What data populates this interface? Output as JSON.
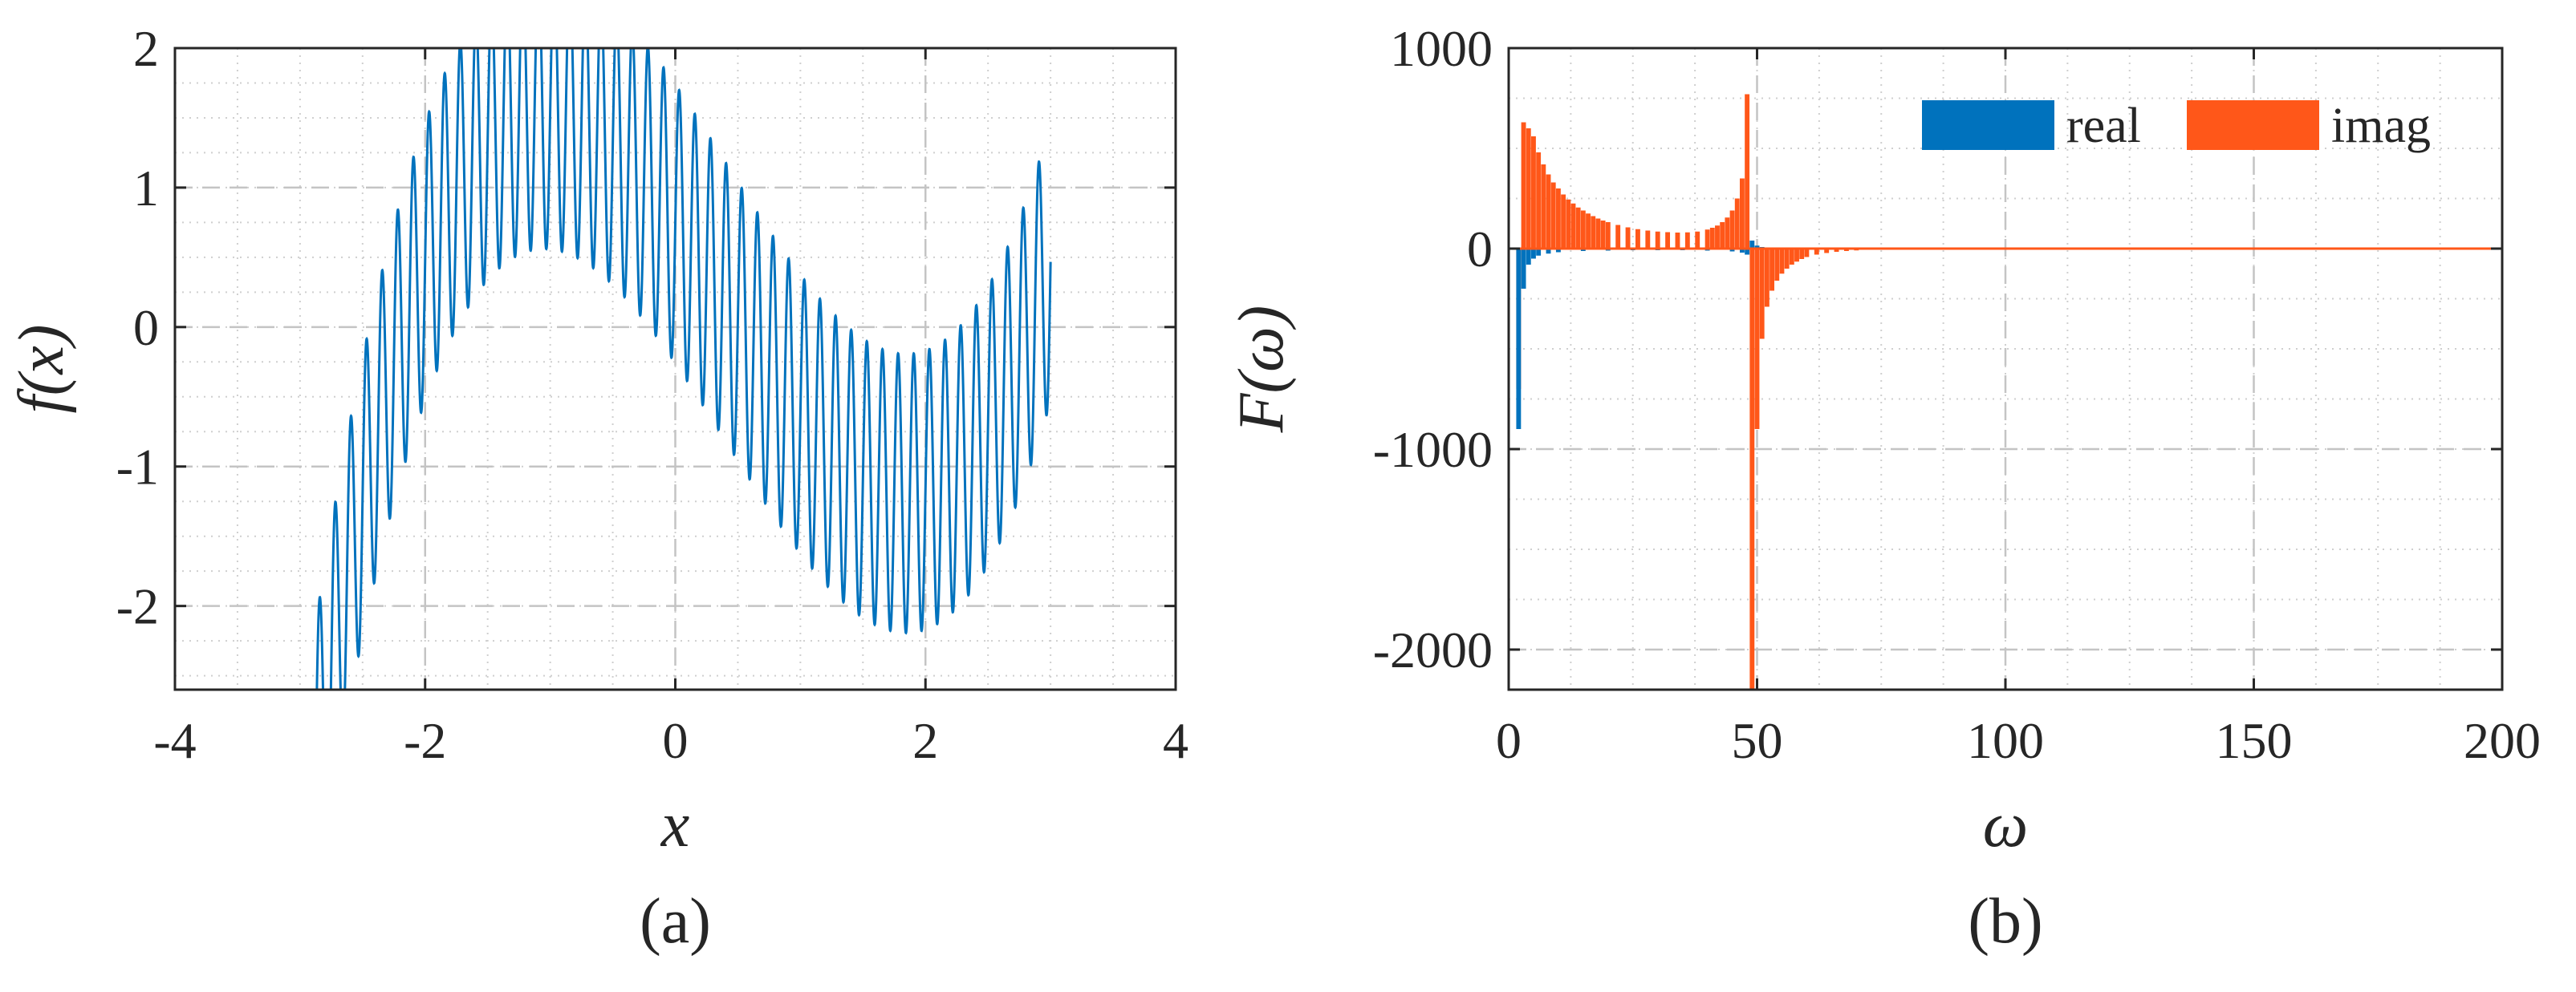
{
  "chart_data": [
    {
      "type": "line",
      "caption": "(a)",
      "xlabel": "x",
      "ylabel": "f(x)",
      "xlim": [
        -4,
        4
      ],
      "ylim": [
        -2.6,
        2
      ],
      "xticks": [
        "-4",
        "-2",
        "0",
        "2",
        "4"
      ],
      "yticks": [
        "2",
        "1",
        "0",
        "-1",
        "-2"
      ],
      "grid": true,
      "minor_grid": true,
      "series": [
        {
          "color": "#0072BD",
          "function": "0.5*(x+2.2)*(x-0.6)*(x-2.8)/2.2 - 0.1 + 1.0*sin(2*pi*8*x)",
          "x_range": [
            -3,
            3
          ],
          "samples": 6000
        }
      ]
    },
    {
      "type": "bar",
      "caption": "(b)",
      "xlabel": "ω",
      "ylabel": "F(ω)",
      "xlim": [
        0,
        200
      ],
      "ylim": [
        -2200,
        1000
      ],
      "xticks": [
        "0",
        "50",
        "100",
        "150",
        "200"
      ],
      "yticks": [
        "1000",
        "0",
        "-1000",
        "-2000"
      ],
      "grid": true,
      "minor_grid": true,
      "legend": {
        "position": "top-right",
        "orientation": "horizontal"
      },
      "series": [
        {
          "name": "real",
          "color": "#0072BD",
          "x": [
            2,
            3,
            4,
            5,
            6,
            8,
            10,
            15,
            20,
            25,
            30,
            35,
            40,
            45,
            47,
            48,
            49,
            50,
            51,
            52,
            55,
            60
          ],
          "values": [
            -900,
            -200,
            -80,
            -50,
            -35,
            -25,
            -18,
            -12,
            -10,
            -8,
            -8,
            -8,
            -10,
            -14,
            -20,
            -30,
            40,
            15,
            8,
            4,
            2,
            1
          ]
        },
        {
          "name": "imag",
          "color": "#FF5719",
          "x": [
            2,
            3,
            4,
            5,
            6,
            7,
            8,
            9,
            10,
            11,
            12,
            13,
            14,
            15,
            16,
            17,
            18,
            19,
            20,
            22,
            24,
            26,
            28,
            30,
            32,
            34,
            36,
            38,
            40,
            41,
            42,
            43,
            44,
            45,
            46,
            47,
            48,
            49,
            50,
            51,
            52,
            53,
            54,
            55,
            56,
            57,
            58,
            59,
            60,
            62,
            64,
            66,
            68,
            70,
            75,
            80
          ],
          "values": [
            -700,
            630,
            600,
            560,
            480,
            420,
            370,
            330,
            300,
            270,
            245,
            225,
            205,
            190,
            175,
            162,
            150,
            140,
            132,
            118,
            106,
            97,
            90,
            85,
            82,
            80,
            81,
            85,
            95,
            104,
            115,
            132,
            155,
            190,
            250,
            350,
            770,
            -2200,
            -900,
            -450,
            -290,
            -210,
            -160,
            -125,
            -100,
            -80,
            -65,
            -52,
            -42,
            -30,
            -22,
            -16,
            -12,
            -9,
            -5,
            -2
          ]
        }
      ]
    }
  ]
}
